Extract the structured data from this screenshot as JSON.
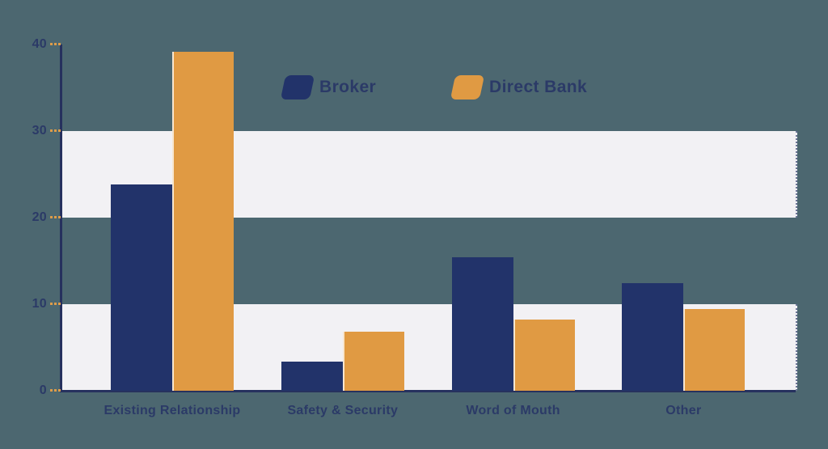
{
  "chart_data": {
    "type": "bar",
    "title": "",
    "categories": [
      "Existing Relationship",
      "Safety & Security",
      "Word of Mouth",
      "Other"
    ],
    "series": [
      {
        "name": "Broker",
        "color": "#22336A",
        "values": [
          23.8,
          3.4,
          15.4,
          12.4
        ]
      },
      {
        "name": "Direct Bank",
        "color": "#E09A43",
        "values": [
          39.2,
          6.8,
          8.2,
          9.4
        ]
      }
    ],
    "xlabel": "",
    "ylabel": "",
    "ylim": [
      0,
      40
    ],
    "yticks": [
      "0",
      "10",
      "20",
      "30",
      "40"
    ],
    "ytick_values": [
      0,
      10,
      20,
      30,
      40
    ],
    "bands": [
      [
        0,
        10
      ],
      [
        20,
        30
      ]
    ],
    "grid": "off",
    "legend_position": "top-center"
  },
  "colors": {
    "background": "#4C6770",
    "band": "#F2F1F4",
    "navy": "#22336A",
    "orange": "#E09A43",
    "axis": "#26315E",
    "tick_dash": "#DD9C4A",
    "label_text": "#2B3A67"
  }
}
